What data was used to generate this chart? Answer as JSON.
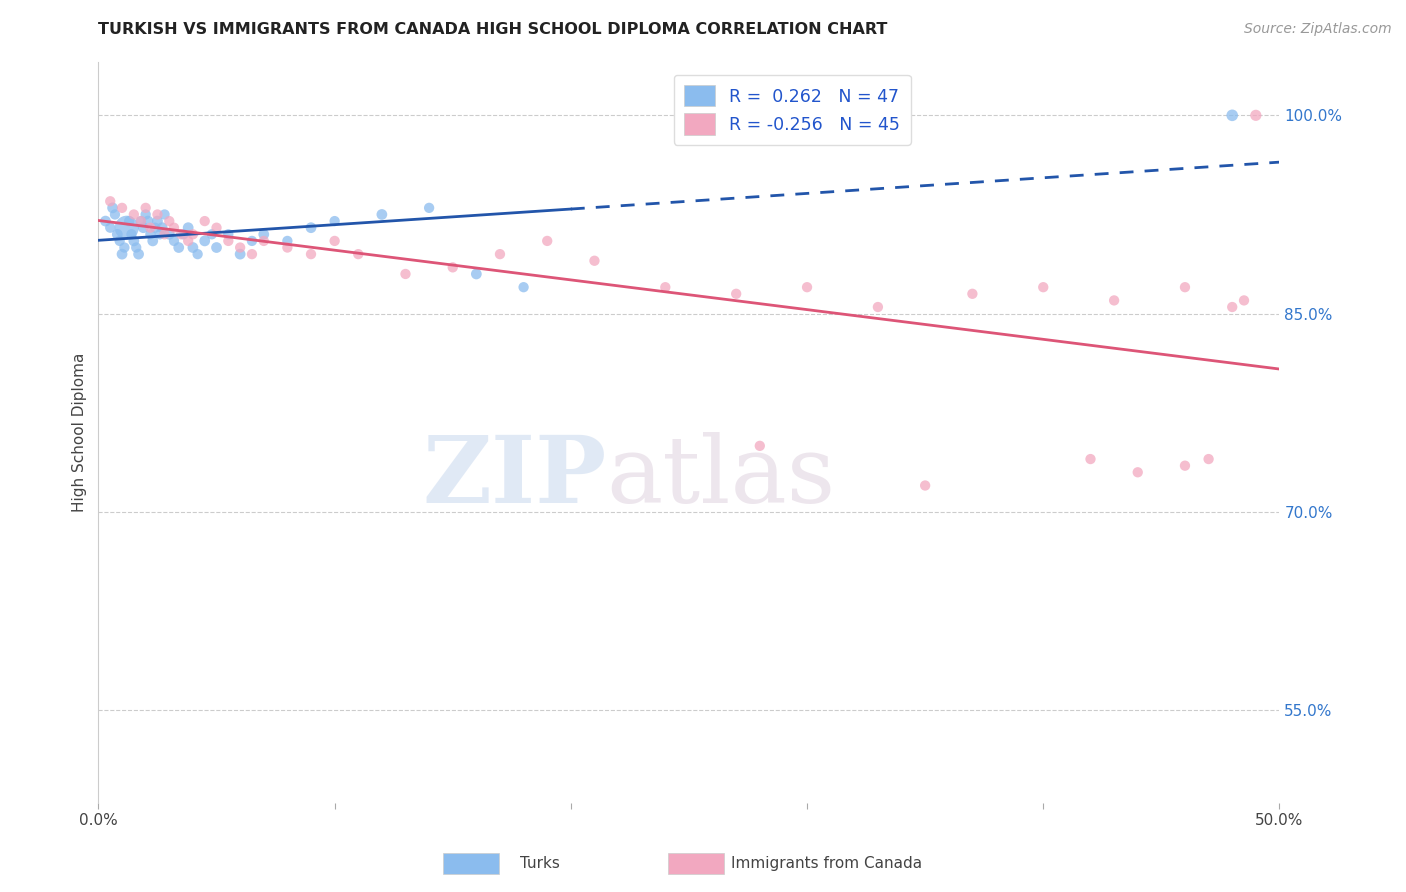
{
  "title": "TURKISH VS IMMIGRANTS FROM CANADA HIGH SCHOOL DIPLOMA CORRELATION CHART",
  "source": "Source: ZipAtlas.com",
  "ylabel": "High School Diploma",
  "right_yticks": [
    "100.0%",
    "85.0%",
    "70.0%",
    "55.0%"
  ],
  "right_ytick_vals": [
    1.0,
    0.85,
    0.7,
    0.55
  ],
  "legend_r1": "R =  0.262   N = 47",
  "legend_r2": "R = -0.256   N = 45",
  "turks_color": "#8bbcee",
  "canada_color": "#f2a8c0",
  "turks_line_color": "#2255aa",
  "canada_line_color": "#dd5577",
  "watermark_zip": "ZIP",
  "watermark_atlas": "atlas",
  "xlim": [
    0.0,
    0.5
  ],
  "ylim": [
    0.48,
    1.04
  ],
  "turks_x": [
    0.003,
    0.005,
    0.006,
    0.007,
    0.008,
    0.009,
    0.01,
    0.011,
    0.012,
    0.013,
    0.014,
    0.015,
    0.016,
    0.017,
    0.018,
    0.019,
    0.02,
    0.021,
    0.022,
    0.023,
    0.024,
    0.025,
    0.026,
    0.027,
    0.028,
    0.03,
    0.032,
    0.034,
    0.036,
    0.038,
    0.04,
    0.042,
    0.045,
    0.048,
    0.05,
    0.055,
    0.06,
    0.065,
    0.07,
    0.08,
    0.09,
    0.1,
    0.12,
    0.14,
    0.16,
    0.18,
    0.48
  ],
  "turks_y": [
    0.92,
    0.915,
    0.93,
    0.925,
    0.91,
    0.905,
    0.895,
    0.9,
    0.915,
    0.92,
    0.91,
    0.905,
    0.9,
    0.895,
    0.92,
    0.915,
    0.925,
    0.92,
    0.91,
    0.905,
    0.915,
    0.92,
    0.91,
    0.915,
    0.925,
    0.91,
    0.905,
    0.9,
    0.91,
    0.915,
    0.9,
    0.895,
    0.905,
    0.91,
    0.9,
    0.91,
    0.895,
    0.905,
    0.91,
    0.905,
    0.915,
    0.92,
    0.925,
    0.93,
    0.88,
    0.87,
    1.0
  ],
  "turks_sizes": [
    60,
    55,
    60,
    55,
    60,
    55,
    60,
    55,
    60,
    55,
    55,
    60,
    55,
    60,
    55,
    60,
    55,
    60,
    55,
    60,
    55,
    60,
    55,
    60,
    55,
    60,
    55,
    60,
    55,
    60,
    60,
    55,
    60,
    55,
    60,
    55,
    60,
    55,
    60,
    55,
    60,
    55,
    60,
    55,
    60,
    55,
    70
  ],
  "turks_sizes_special": [
    [
      8,
      300
    ]
  ],
  "canada_x": [
    0.005,
    0.01,
    0.015,
    0.018,
    0.02,
    0.022,
    0.025,
    0.028,
    0.03,
    0.032,
    0.035,
    0.038,
    0.04,
    0.045,
    0.05,
    0.055,
    0.06,
    0.065,
    0.07,
    0.08,
    0.09,
    0.1,
    0.11,
    0.13,
    0.15,
    0.17,
    0.19,
    0.21,
    0.24,
    0.27,
    0.3,
    0.33,
    0.37,
    0.4,
    0.43,
    0.46,
    0.28,
    0.35,
    0.42,
    0.44,
    0.46,
    0.47,
    0.48,
    0.485,
    0.49
  ],
  "canada_y": [
    0.935,
    0.93,
    0.925,
    0.92,
    0.93,
    0.915,
    0.925,
    0.91,
    0.92,
    0.915,
    0.91,
    0.905,
    0.91,
    0.92,
    0.915,
    0.905,
    0.9,
    0.895,
    0.905,
    0.9,
    0.895,
    0.905,
    0.895,
    0.88,
    0.885,
    0.895,
    0.905,
    0.89,
    0.87,
    0.865,
    0.87,
    0.855,
    0.865,
    0.87,
    0.86,
    0.87,
    0.75,
    0.72,
    0.74,
    0.73,
    0.735,
    0.74,
    0.855,
    0.86,
    1.0
  ],
  "canada_sizes": [
    55,
    55,
    55,
    55,
    55,
    55,
    55,
    55,
    55,
    55,
    55,
    55,
    55,
    55,
    55,
    55,
    55,
    55,
    55,
    55,
    55,
    55,
    55,
    55,
    55,
    55,
    55,
    55,
    55,
    55,
    55,
    55,
    55,
    55,
    55,
    55,
    55,
    55,
    55,
    55,
    55,
    55,
    55,
    55,
    65
  ]
}
